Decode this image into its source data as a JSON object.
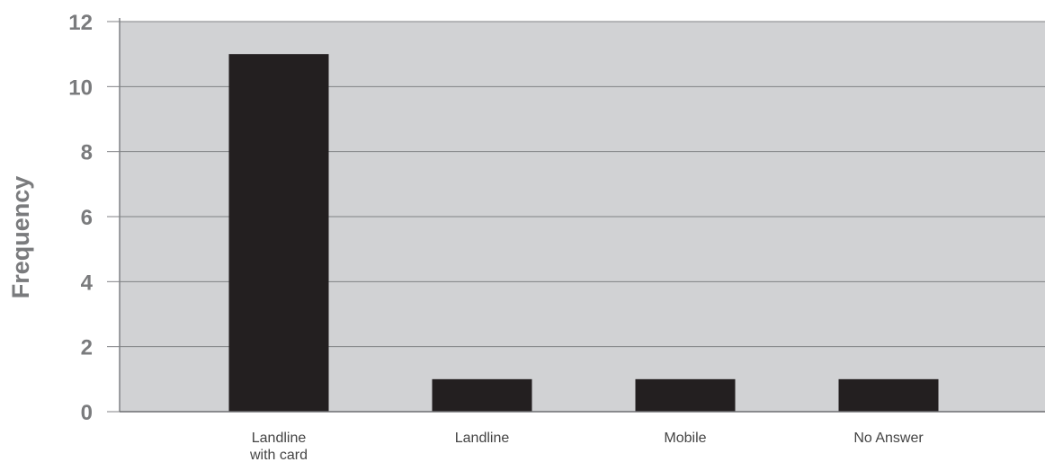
{
  "chart_data": {
    "type": "bar",
    "title": "",
    "xlabel": "",
    "ylabel": "Frequency",
    "categories": [
      [
        "Landline",
        "with card"
      ],
      [
        "Landline"
      ],
      [
        "Mobile"
      ],
      [
        "No Answer"
      ]
    ],
    "values": [
      11,
      1,
      1,
      1
    ],
    "ylim": [
      0,
      12
    ],
    "yticks": [
      "0",
      "2",
      "4",
      "6",
      "8",
      "10",
      "12"
    ],
    "grid": true,
    "legend": "none",
    "colors": {
      "bar": "#231f20",
      "plot_background": "#d1d2d4",
      "grid": "#808285",
      "tick_text": "#7a7b7d"
    }
  }
}
